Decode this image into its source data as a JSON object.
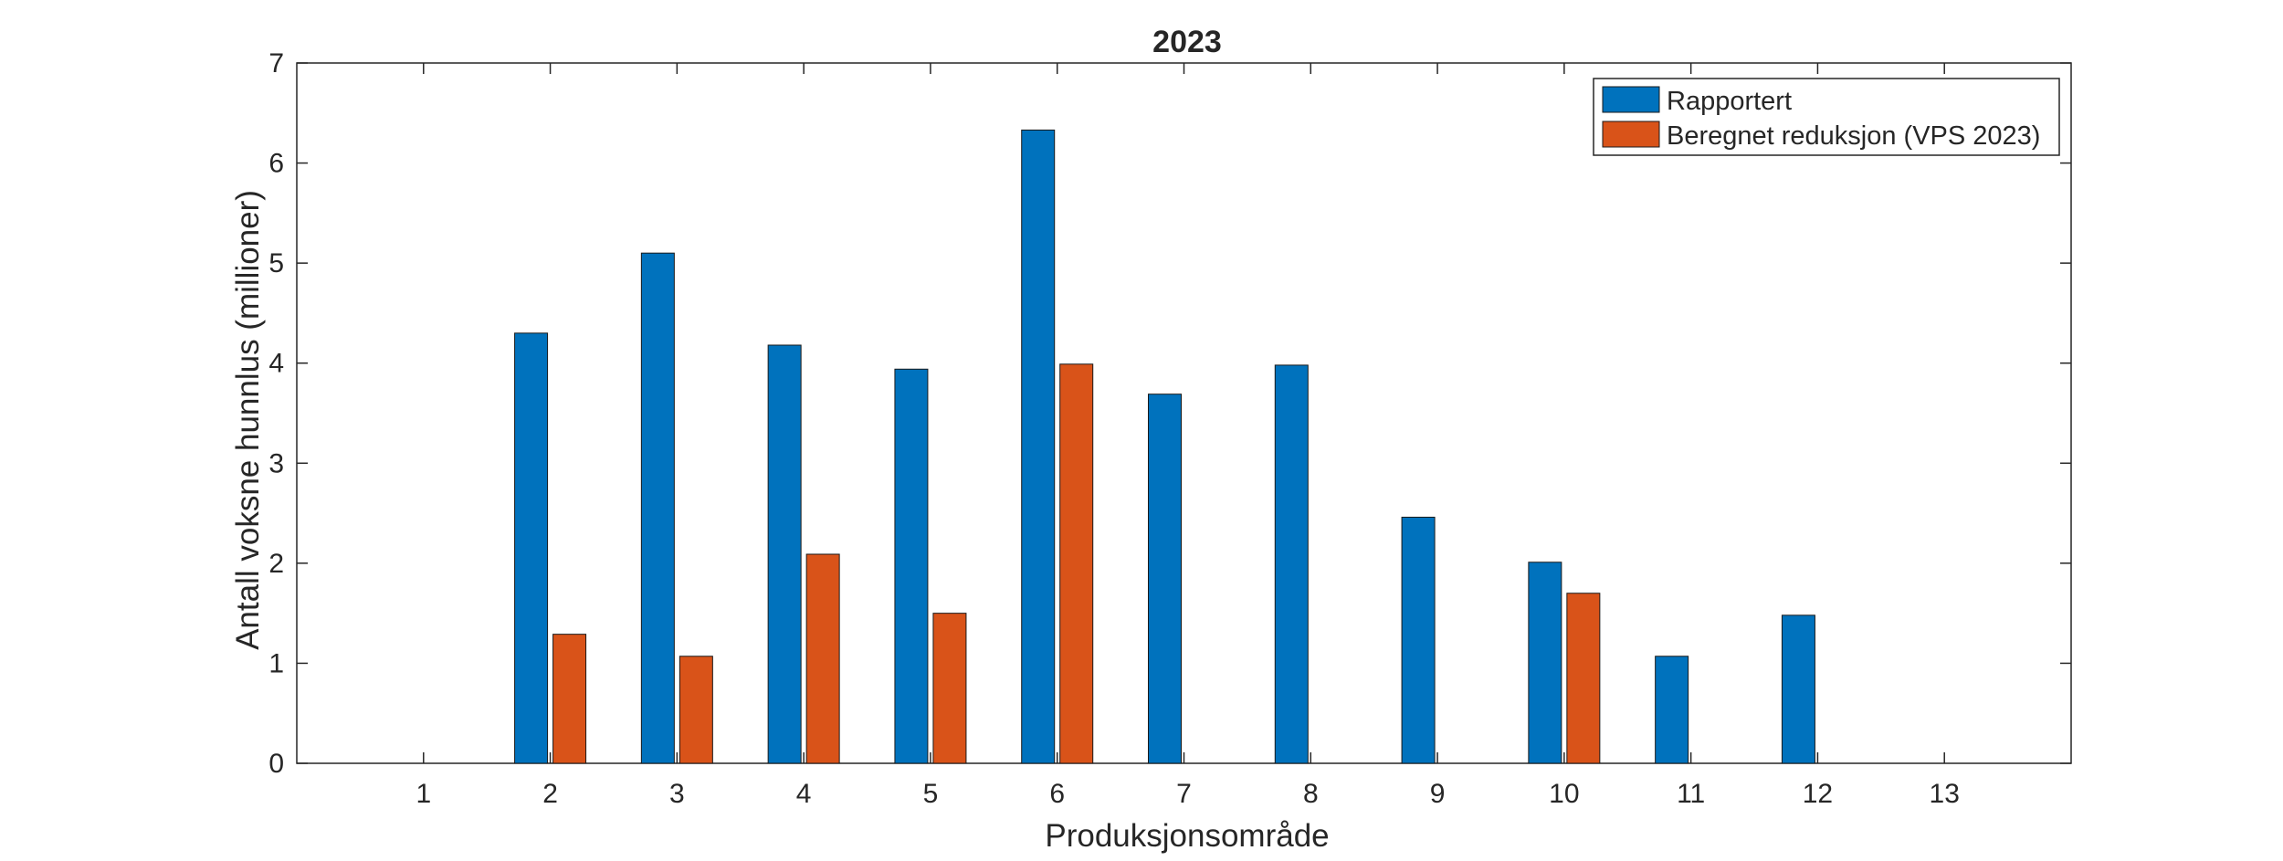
{
  "chart_data": {
    "type": "bar",
    "title": "2023",
    "xlabel": "Produksjonsområde",
    "ylabel": "Antall voksne hunnlus (millioner)",
    "categories": [
      "1",
      "2",
      "3",
      "4",
      "5",
      "6",
      "7",
      "8",
      "9",
      "10",
      "11",
      "12",
      "13"
    ],
    "ylim": [
      0,
      7
    ],
    "yticks": [
      "0",
      "1",
      "2",
      "3",
      "4",
      "5",
      "6",
      "7"
    ],
    "grid": false,
    "legend_position": "top-right",
    "series": [
      {
        "name": "Rapportert",
        "color": "#0072BD",
        "values": [
          0,
          4.3,
          5.1,
          4.18,
          3.94,
          6.33,
          3.69,
          3.98,
          2.46,
          2.01,
          1.07,
          1.48,
          0
        ]
      },
      {
        "name": "Beregnet reduksjon (VPS 2023)",
        "color": "#D95319",
        "values": [
          0,
          1.29,
          1.07,
          2.09,
          1.5,
          3.99,
          0,
          0,
          0,
          1.7,
          0,
          0,
          0
        ]
      }
    ]
  }
}
